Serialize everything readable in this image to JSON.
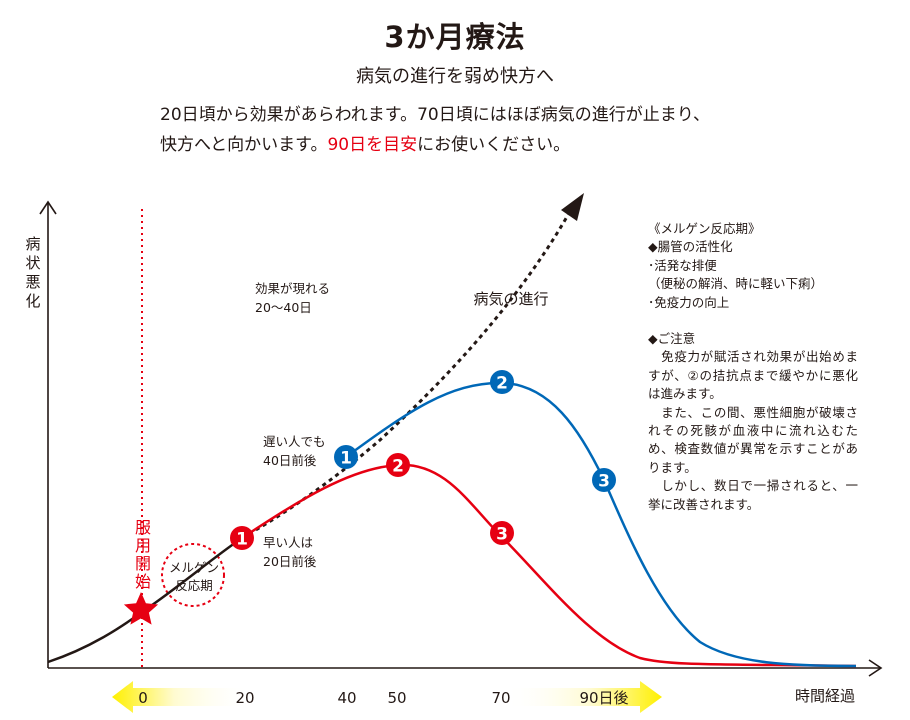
{
  "header": {
    "title": "3か月療法",
    "subtitle": "病気の進行を弱め快方へ",
    "intro_line1": "20日頃から効果があらわれます。70日頃にはほぼ病気の進行が止まり、",
    "intro_line2_before": "快方へと向かいます。",
    "intro_line2_highlight": "90日を目安",
    "intro_line2_after": "にお使いください。"
  },
  "notes": {
    "title": "《メルゲン反応期》",
    "item_heading": "◆腸管の活性化",
    "item_1": "･活発な排便",
    "item_2": "（便秘の解消、時に軽い下痢）",
    "item_3": "･免疫力の向上",
    "caution_heading": "◆ご注意",
    "caution_para1": "　免疫力が賦活され効果が出始めますが、②の拮抗点まで緩やかに悪化は進みます。",
    "caution_para2": "　また、この間、悪性細胞が破壊されその死骸が血液中に流れ込むため、検査数値が異常を示すことがあります。",
    "caution_para3": "　しかし、数日で一掃されると、一挙に改善されます。"
  },
  "diagram": {
    "y_axis_label": [
      "病",
      "状",
      "悪",
      "化"
    ],
    "x_axis_label": "時間経過",
    "start_label": [
      "服",
      "用",
      "開",
      "始"
    ],
    "reaction_label_1": "メルゲン",
    "reaction_label_2": "反応期",
    "effect_label_1": "効果が現れる",
    "effect_label_2": "20〜40日",
    "progress_label": "病気の進行",
    "slow_label_1": "遅い人でも",
    "slow_label_2": "40日前後",
    "fast_label_1": "早い人は",
    "fast_label_2": "20日前後",
    "timeline": [
      "0",
      "20",
      "40",
      "50",
      "70",
      "90日後"
    ],
    "marker_numbers": [
      "1",
      "2",
      "3"
    ],
    "colors": {
      "red": "#e60012",
      "blue": "#0068b7",
      "black": "#231815",
      "arrow_yellow": "#fff000"
    }
  }
}
